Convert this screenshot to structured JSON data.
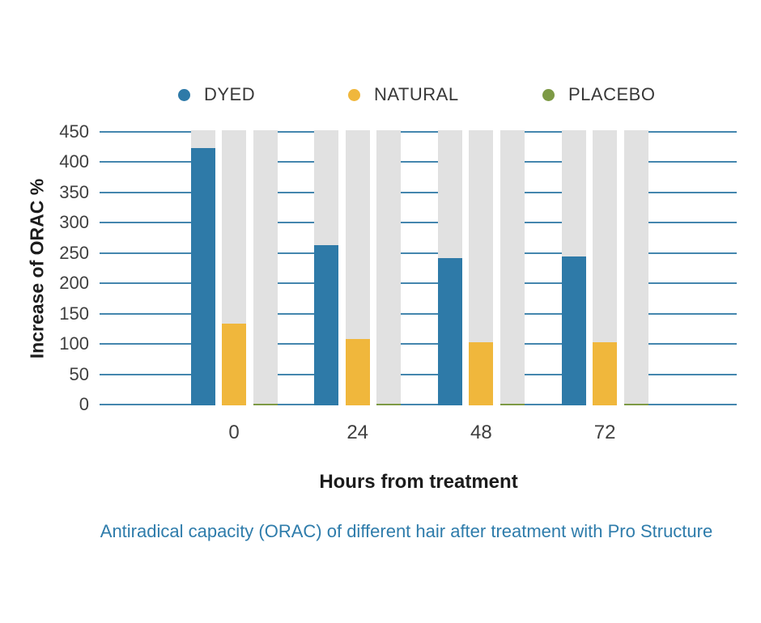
{
  "chart_data": {
    "type": "bar",
    "categories": [
      "0",
      "24",
      "48",
      "72"
    ],
    "series": [
      {
        "name": "DYED",
        "color": "#2e7aa8",
        "values": [
          425,
          265,
          243,
          246
        ]
      },
      {
        "name": "NATURAL",
        "color": "#f0b73c",
        "values": [
          135,
          109,
          104,
          104
        ]
      },
      {
        "name": "PLACEBO",
        "color": "#7d9a45",
        "values": [
          3,
          3,
          3,
          3
        ]
      }
    ],
    "xlabel": "Hours from treatment",
    "ylabel": "Increase of ORAC %",
    "ylim": [
      0,
      450
    ],
    "ytick_step": 50,
    "grid": "horizontal",
    "legend_position": "top",
    "gridline_color": "#4486ae",
    "column_background_color": "#e1e1e1"
  },
  "caption": {
    "text": "Antiradical capacity (ORAC) of different hair after treatment with Pro Structure",
    "color": "#2e7cab"
  }
}
